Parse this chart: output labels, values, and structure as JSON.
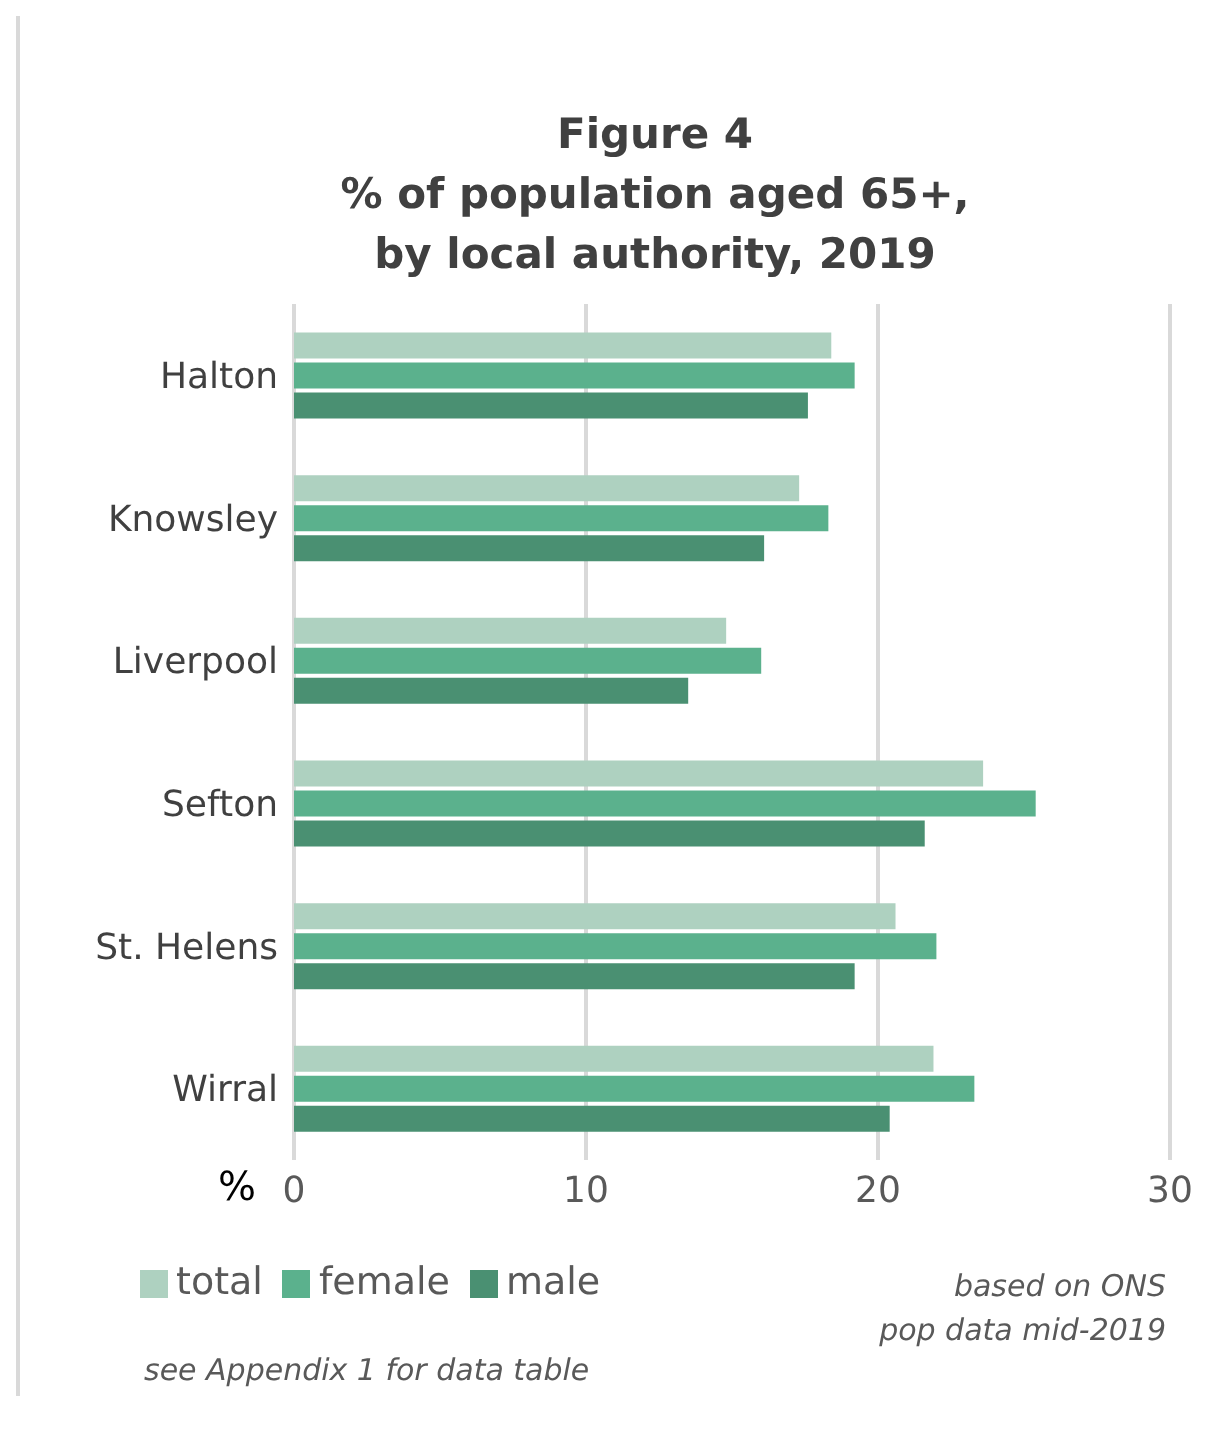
{
  "chart_data": {
    "type": "bar",
    "orientation": "horizontal",
    "title": "Figure 4\n% of population aged 65+,\nby local authority, 2019",
    "xlabel": "%",
    "categories": [
      "Halton",
      "Knowsley",
      "Liverpool",
      "Sefton",
      "St. Helens",
      "Wirral"
    ],
    "series": [
      {
        "name": "total",
        "color": "#aed1c0",
        "values": [
          18.4,
          17.3,
          14.8,
          23.6,
          20.6,
          21.9
        ]
      },
      {
        "name": "female",
        "color": "#5bb18d",
        "values": [
          19.2,
          18.3,
          16.0,
          25.4,
          22.0,
          23.3
        ]
      },
      {
        "name": "male",
        "color": "#4a9072",
        "values": [
          17.6,
          16.1,
          13.5,
          21.6,
          19.2,
          20.4
        ]
      }
    ],
    "xlim": [
      0,
      30
    ],
    "xticks": [
      0,
      10,
      20,
      30
    ],
    "grid": "x",
    "legend": "bottom left",
    "annotations": [
      "based on ONS\npop data mid-2019",
      "see Appendix 1 for data table"
    ]
  }
}
